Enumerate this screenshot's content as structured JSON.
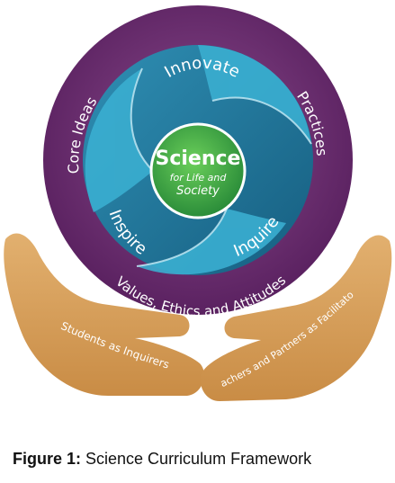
{
  "diagram": {
    "center": {
      "title": "Science",
      "line1": "for Life and",
      "line2": "Society"
    },
    "inner_ring": [
      "Innovate",
      "Inspire",
      "Inquire"
    ],
    "outer_ring": {
      "left": "Core Ideas",
      "right": "Practices",
      "bottom": "Values, Ethics and Attitudes"
    },
    "hands": {
      "left": "Students as Inquirers",
      "right": "Teachers and Partners as Facilitators"
    },
    "colors": {
      "outer_ring": "#6b2d6e",
      "inner_dark": "#1a6f92",
      "inner_light": "#33a6c7",
      "center": "#3fb04a",
      "hands": "#d9a15e"
    }
  },
  "caption": {
    "label": "Figure 1:",
    "text": " Science Curriculum Framework"
  }
}
